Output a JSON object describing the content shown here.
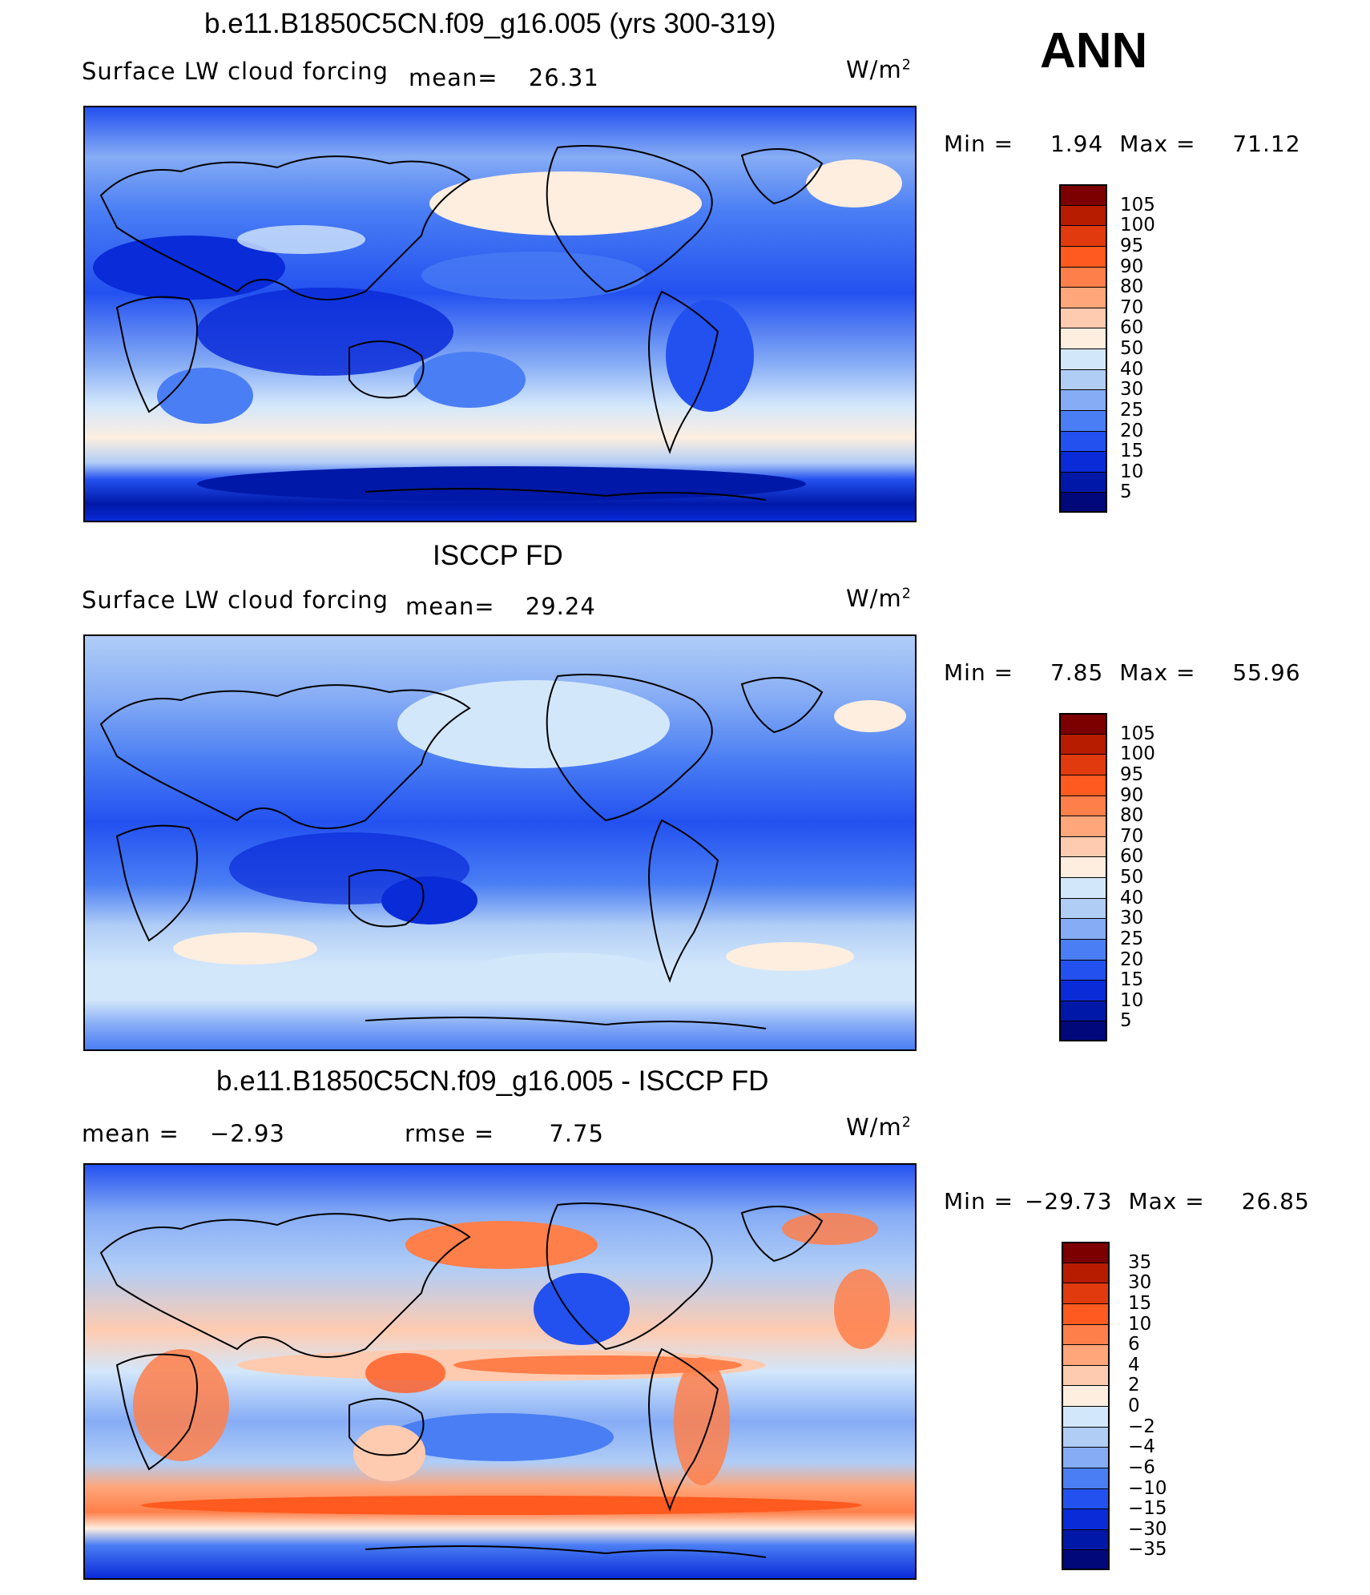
{
  "season": "ANN",
  "panels": [
    {
      "title": "b.e11.B1850C5CN.f09_g16.005 (yrs 300-319)",
      "variable": "Surface LW cloud forcing",
      "mean_label": "mean=",
      "mean_value": "26.31",
      "units_base": "W/m",
      "units_exp": "2",
      "min_label": "Min =",
      "min_value": "1.94",
      "max_label": "Max =",
      "max_value": "71.12",
      "levels": [
        "105",
        "100",
        "95",
        "90",
        "80",
        "70",
        "60",
        "50",
        "40",
        "30",
        "25",
        "20",
        "15",
        "10",
        "5"
      ],
      "colors": [
        "#7d0000",
        "#b71c00",
        "#e03a0e",
        "#ff5a1f",
        "#ff7f4a",
        "#ffa67a",
        "#ffcbb0",
        "#fdeee0",
        "#d3e7fb",
        "#b0cdf6",
        "#86acf5",
        "#4a7ef4",
        "#2351f0",
        "#0a2bd8",
        "#0018a8",
        "#00087a"
      ]
    },
    {
      "title": "ISCCP FD",
      "variable": "Surface LW cloud forcing",
      "mean_label": "mean=",
      "mean_value": "29.24",
      "units_base": "W/m",
      "units_exp": "2",
      "min_label": "Min =",
      "min_value": "7.85",
      "max_label": "Max =",
      "max_value": "55.96",
      "levels": [
        "105",
        "100",
        "95",
        "90",
        "80",
        "70",
        "60",
        "50",
        "40",
        "30",
        "25",
        "20",
        "15",
        "10",
        "5"
      ],
      "colors": [
        "#7d0000",
        "#b71c00",
        "#e03a0e",
        "#ff5a1f",
        "#ff7f4a",
        "#ffa67a",
        "#ffcbb0",
        "#fdeee0",
        "#d3e7fb",
        "#b0cdf6",
        "#86acf5",
        "#4a7ef4",
        "#2351f0",
        "#0a2bd8",
        "#0018a8",
        "#00087a"
      ]
    },
    {
      "title": "b.e11.B1850C5CN.f09_g16.005 - ISCCP FD",
      "mean_label": "mean =",
      "mean_value": "−2.93",
      "rmse_label": "rmse =",
      "rmse_value": "7.75",
      "units_base": "W/m",
      "units_exp": "2",
      "min_label": "Min =",
      "min_value": "−29.73",
      "max_label": "Max =",
      "max_value": "26.85",
      "levels": [
        "35",
        "30",
        "15",
        "10",
        "6",
        "4",
        "2",
        "0",
        "−2",
        "−4",
        "−6",
        "−10",
        "−15",
        "−30",
        "−35"
      ],
      "colors": [
        "#7d0000",
        "#b71c00",
        "#e03a0e",
        "#ff5a1f",
        "#ff7f4a",
        "#ffa67a",
        "#ffcbb0",
        "#fdeee0",
        "#d3e7fb",
        "#b0cdf6",
        "#86acf5",
        "#4a7ef4",
        "#2351f0",
        "#0a2bd8",
        "#0018a8",
        "#00087a"
      ]
    }
  ]
}
